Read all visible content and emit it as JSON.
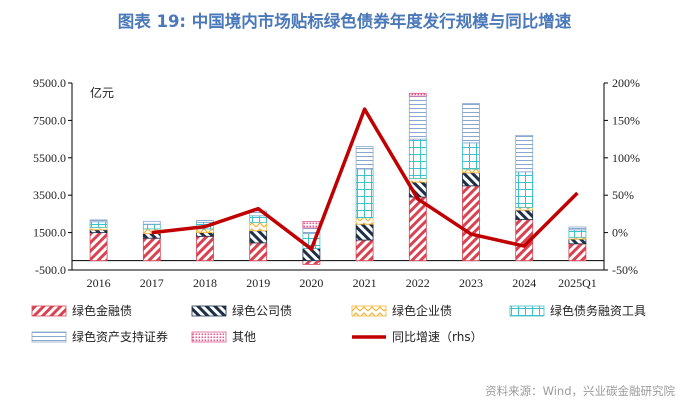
{
  "title": "图表 19: 中国境内市场贴标绿色债券年度发行规模与同比增速",
  "source": "资料来源：Wind，兴业碳金融研究院",
  "chart_data": {
    "type": "bar",
    "stacked": true,
    "categories": [
      "2016",
      "2017",
      "2018",
      "2019",
      "2020",
      "2021",
      "2022",
      "2023",
      "2024",
      "2025Q1"
    ],
    "left_axis": {
      "label": "亿元",
      "min": -500,
      "max": 9500,
      "ticks": [
        "-500.0",
        "1500.0",
        "3500.0",
        "5500.0",
        "7500.0",
        "9500.0"
      ]
    },
    "right_axis": {
      "min": -0.5,
      "max": 2.0,
      "ticks": [
        "-50%",
        "0%",
        "50%",
        "100%",
        "150%",
        "200%"
      ]
    },
    "series": [
      {
        "name": "绿色金融债",
        "color": "#d94250",
        "pattern": "hatch-red",
        "values": [
          1500,
          1200,
          1300,
          950,
          -200,
          1100,
          3400,
          4000,
          2200,
          900
        ]
      },
      {
        "name": "绿色公司债",
        "color": "#1e3048",
        "pattern": "hatch-navy",
        "values": [
          150,
          250,
          200,
          650,
          650,
          850,
          800,
          700,
          500,
          250
        ]
      },
      {
        "name": "绿色企业债",
        "color": "#f2b43a",
        "pattern": "zigzag-yellow",
        "values": [
          130,
          250,
          200,
          450,
          0,
          350,
          200,
          200,
          150,
          100
        ]
      },
      {
        "name": "绿色债务融资工具",
        "color": "#3fc1c9",
        "pattern": "grid-cyan",
        "values": [
          300,
          250,
          350,
          350,
          800,
          2600,
          2100,
          1400,
          1900,
          400
        ]
      },
      {
        "name": "绿色资产支持证券",
        "color": "#8aa8cc",
        "pattern": "lines-blue",
        "values": [
          100,
          150,
          100,
          250,
          300,
          1200,
          2300,
          2100,
          1950,
          150
        ]
      },
      {
        "name": "其他",
        "color": "#e05b8c",
        "pattern": "dots-pink",
        "values": [
          0,
          0,
          0,
          0,
          350,
          0,
          150,
          0,
          0,
          0
        ]
      },
      {
        "name": "同比增速（rhs）",
        "type": "line",
        "axis": "right",
        "color": "#c00000",
        "values": [
          null,
          0.0,
          0.08,
          0.32,
          -0.22,
          1.65,
          0.45,
          -0.02,
          -0.18,
          0.53
        ]
      }
    ]
  }
}
